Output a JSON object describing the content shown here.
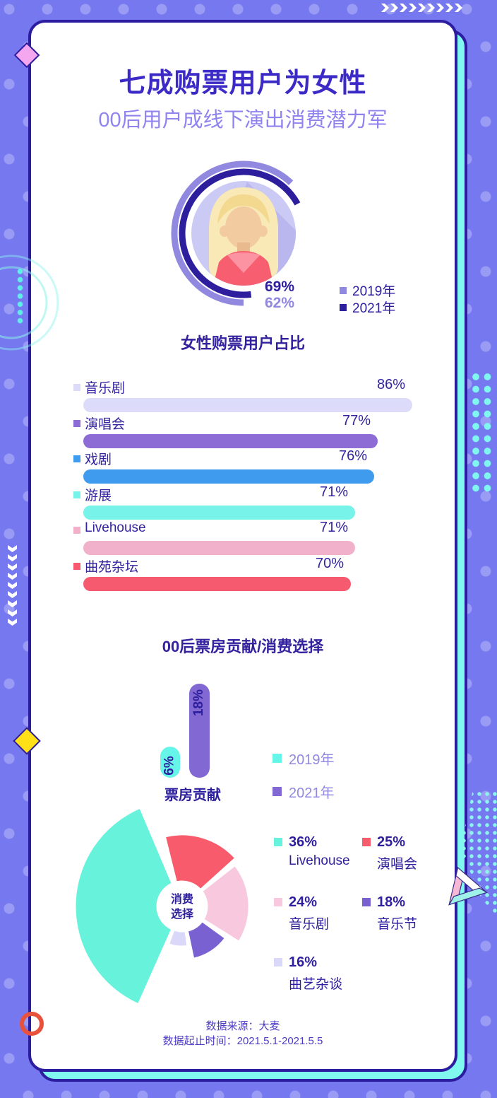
{
  "page": {
    "title": "七成购票用户为女性",
    "subtitle": "00后用户成线下演出消费潜力军"
  },
  "colors": {
    "background": "#7678f0",
    "card_border": "#2c1ca0",
    "card_shadow": "#80f7ef",
    "title": "#3c2ac6",
    "subtitle": "#8f83ef",
    "dark_indigo": "#2d1e9e",
    "light_purple": "#9188e0"
  },
  "chart_data": [
    {
      "type": "donut",
      "title": "女性购票用户占比",
      "series": [
        {
          "name": "2019年",
          "value": 62,
          "color": "#9188e0"
        },
        {
          "name": "2021年",
          "value": 69,
          "color": "#2d1e9e"
        }
      ],
      "unit": "%",
      "display": {
        "v2021": "69%",
        "v2019": "62%"
      },
      "legend_position": "right"
    },
    {
      "type": "bar",
      "orientation": "horizontal",
      "title": "女性购票用户占比",
      "categories": [
        "音乐剧",
        "演唱会",
        "戏剧",
        "游展",
        "Livehouse",
        "曲苑杂坛"
      ],
      "values": [
        86,
        77,
        76,
        71,
        71,
        70
      ],
      "unit": "%",
      "xlim": [
        0,
        100
      ],
      "colors": [
        "#dcdbf9",
        "#8e6cd6",
        "#3f9bee",
        "#78f3e9",
        "#f2b1cb",
        "#f55a6e"
      ],
      "value_labels": [
        "86%",
        "77%",
        "76%",
        "71%",
        "71%",
        "70%"
      ]
    },
    {
      "type": "bar",
      "orientation": "vertical",
      "title": "00后票房贡献",
      "categories": [
        "2019年",
        "2021年"
      ],
      "values": [
        6,
        18
      ],
      "unit": "%",
      "value_labels": [
        "6%",
        "18%"
      ],
      "colors": [
        "#65f5e9",
        "#8168d2"
      ],
      "x_axis_label": "票房贡献",
      "legend_position": "right"
    },
    {
      "type": "pie",
      "variant": "rose",
      "title": "消费选择",
      "center": [
        "消费",
        "选择"
      ],
      "labels": [
        "Livehouse",
        "演唱会",
        "音乐剧",
        "音乐节",
        "曲艺杂谈"
      ],
      "values": [
        36,
        25,
        24,
        18,
        16
      ],
      "unit": "%",
      "colors": [
        "#67f2dc",
        "#f85b6b",
        "#f8c9de",
        "#7a61d1",
        "#d9d8f8"
      ],
      "slices": [
        {
          "label": "演唱会",
          "value": 25,
          "color": "#f85b6b",
          "a0": -14,
          "a1": 48,
          "r": 102
        },
        {
          "label": "音乐剧",
          "value": 24,
          "color": "#f8c9de",
          "a0": 52,
          "a1": 122,
          "r": 95
        },
        {
          "label": "音乐节",
          "value": 18,
          "color": "#7a61d1",
          "a0": 126,
          "a1": 168,
          "r": 76
        },
        {
          "label": "曲艺杂谈",
          "value": 16,
          "color": "#d9d8f8",
          "a0": 172,
          "a1": 200,
          "r": 57
        },
        {
          "label": "Livehouse",
          "value": 36,
          "color": "#67f2dc",
          "a0": 204,
          "a1": 337,
          "r": 152
        }
      ],
      "legend": [
        {
          "pct": "36%",
          "label": "Livehouse",
          "color": "#67f2dc"
        },
        {
          "pct": "25%",
          "label": "演唱会",
          "color": "#f85b6b"
        },
        {
          "pct": "24%",
          "label": "音乐剧",
          "color": "#f8c9de"
        },
        {
          "pct": "18%",
          "label": "音乐节",
          "color": "#7a61d1"
        },
        {
          "pct": "16%",
          "label": "曲艺杂谈",
          "color": "#d9d8f8"
        }
      ]
    }
  ],
  "section2_title": "00后票房贡献/消费选择",
  "footer": {
    "line1": "数据来源：大麦",
    "line2": "数据起止时间：2021.5.1-2021.5.5"
  }
}
